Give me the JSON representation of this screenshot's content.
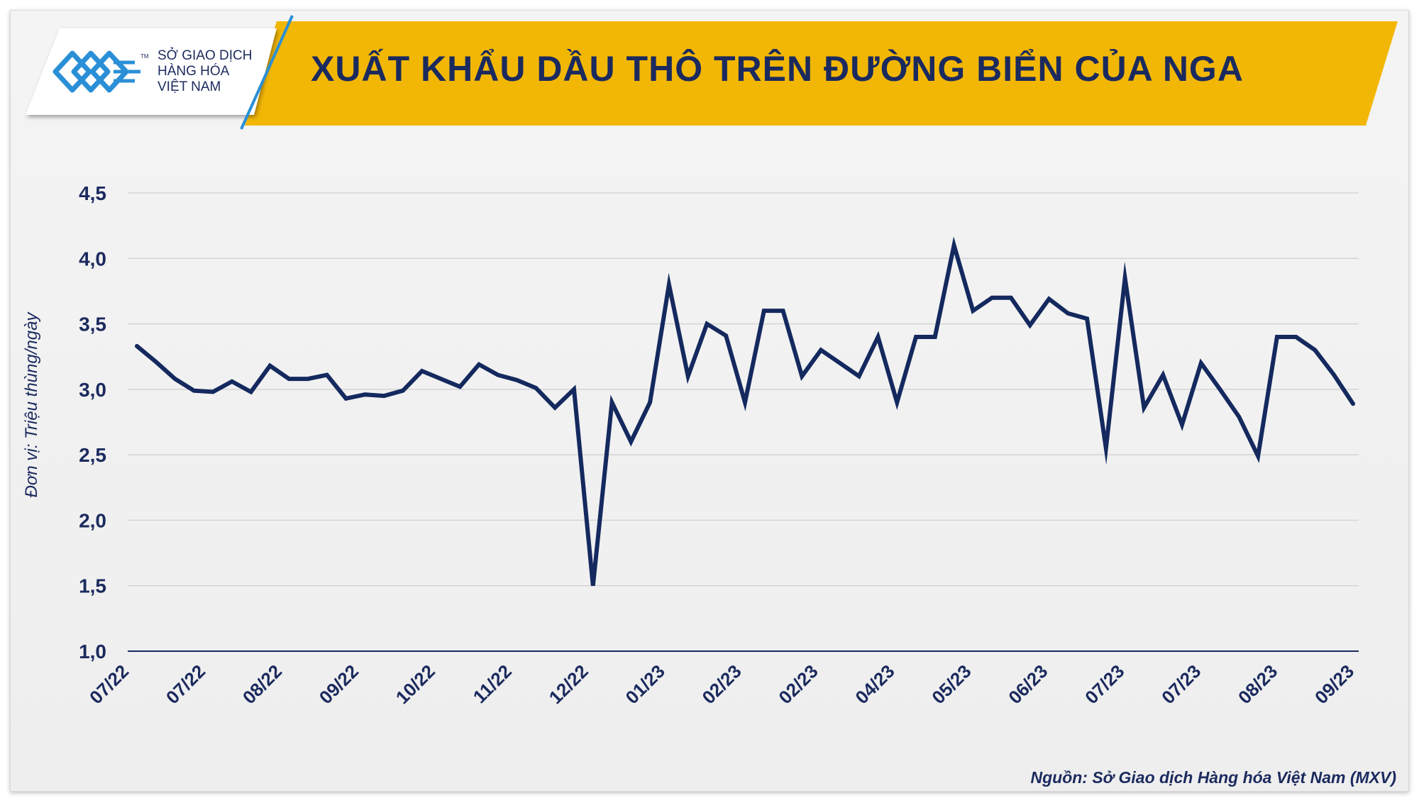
{
  "header": {
    "title": "XUẤT KHẨU DẦU THÔ TRÊN ĐƯỜNG BIỂN CỦA NGA",
    "logo_lines": [
      "SỞ GIAO DỊCH",
      "HÀNG HÓA",
      "VIỆT NAM"
    ],
    "logo_tm": "TM"
  },
  "footer": {
    "source": "Nguồn: Sở Giao dịch Hàng hóa Việt Nam (MXV)"
  },
  "colors": {
    "banner": "#f2b705",
    "line": "#14295e",
    "text": "#1b2a5e",
    "logo_blue": "#2a8fd6"
  },
  "chart_data": {
    "type": "line",
    "title": "XUẤT KHẨU DẦU THÔ TRÊN ĐƯỜNG BIỂN CỦA NGA",
    "ylabel": "Đơn vị: Triệu thùng/ngày",
    "xlabel": "",
    "ylim": [
      1.0,
      4.5
    ],
    "yticks": [
      "1,0",
      "1,5",
      "2,0",
      "2,5",
      "3,0",
      "3,5",
      "4,0",
      "4,5"
    ],
    "ytick_values": [
      1.0,
      1.5,
      2.0,
      2.5,
      3.0,
      3.5,
      4.0,
      4.5
    ],
    "xtick_labels": [
      "07/22",
      "07/22",
      "08/22",
      "09/22",
      "10/22",
      "11/22",
      "12/22",
      "01/23",
      "02/23",
      "02/23",
      "04/23",
      "05/23",
      "06/23",
      "07/23",
      "07/23",
      "08/23",
      "09/23"
    ],
    "grid": true,
    "series": [
      {
        "values": [
          3.33,
          3.21,
          3.08,
          2.99,
          2.98,
          3.06,
          2.98,
          3.18,
          3.08,
          3.08,
          3.11,
          2.93,
          2.96,
          2.95,
          2.99,
          3.14,
          3.08,
          3.02,
          3.19,
          3.11,
          3.07,
          3.01,
          2.86,
          3.0,
          1.5,
          2.9,
          2.6,
          2.9,
          3.8,
          3.1,
          3.5,
          3.41,
          2.9,
          3.6,
          3.6,
          3.1,
          3.3,
          3.2,
          3.1,
          3.4,
          2.9,
          3.4,
          3.4,
          4.1,
          3.6,
          3.7,
          3.7,
          3.49,
          3.69,
          3.58,
          3.54,
          2.55,
          3.85,
          2.86,
          3.11,
          2.73,
          3.2,
          3.0,
          2.79,
          2.49,
          3.4,
          3.4,
          3.3,
          3.11,
          2.89
        ]
      }
    ]
  }
}
